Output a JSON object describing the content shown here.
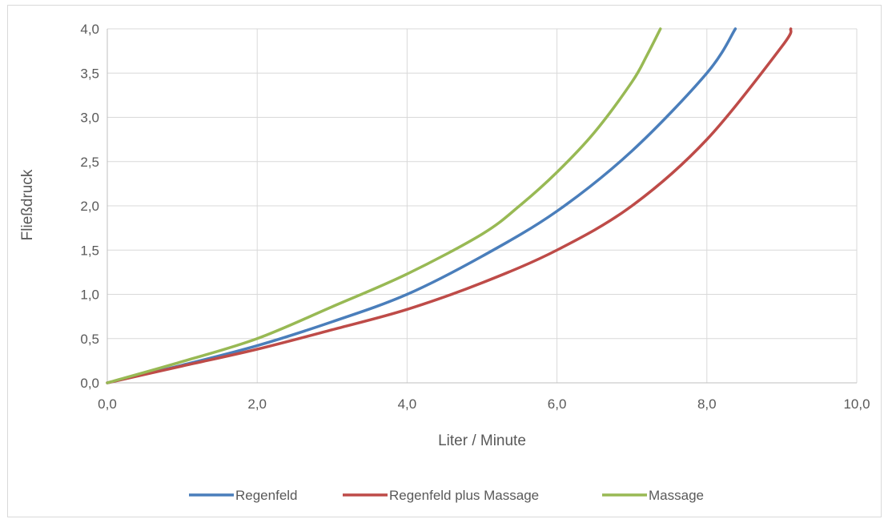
{
  "chart_data": {
    "type": "line",
    "title": "",
    "xlabel": "Liter / Minute",
    "ylabel": "Fließdruck",
    "xlim": [
      0,
      10
    ],
    "ylim": [
      0,
      4
    ],
    "x_ticks": [
      0,
      2,
      4,
      6,
      8,
      10
    ],
    "y_ticks": [
      0,
      0.5,
      1,
      1.5,
      2,
      2.5,
      3,
      3.5,
      4
    ],
    "x_tick_labels": [
      "0,0",
      "2,0",
      "4,0",
      "6,0",
      "8,0",
      "10,0"
    ],
    "y_tick_labels": [
      "0,0",
      "0,5",
      "1,0",
      "1,5",
      "2,0",
      "2,5",
      "3,0",
      "3,5",
      "4,0"
    ],
    "grid": "vertical and horizontal",
    "legend_position": "bottom",
    "series": [
      {
        "name": "Regenfeld",
        "color": "#4a7ebb",
        "points": [
          [
            0,
            0
          ],
          [
            1,
            0.2
          ],
          [
            2,
            0.42
          ],
          [
            3,
            0.69
          ],
          [
            4,
            1.0
          ],
          [
            5,
            1.43
          ],
          [
            6,
            1.94
          ],
          [
            7,
            2.62
          ],
          [
            8,
            3.5
          ],
          [
            8.38,
            4.0
          ]
        ]
      },
      {
        "name": "Regenfeld plus Massage",
        "color": "#be4b48",
        "points": [
          [
            0,
            0
          ],
          [
            1,
            0.19
          ],
          [
            2,
            0.38
          ],
          [
            3,
            0.6
          ],
          [
            4,
            0.83
          ],
          [
            5,
            1.13
          ],
          [
            6,
            1.5
          ],
          [
            7,
            2.0
          ],
          [
            8,
            2.75
          ],
          [
            9,
            3.8
          ],
          [
            9.12,
            4.0
          ]
        ]
      },
      {
        "name": "Massage",
        "color": "#98b954",
        "points": [
          [
            0,
            0
          ],
          [
            1,
            0.24
          ],
          [
            2,
            0.5
          ],
          [
            3,
            0.86
          ],
          [
            4,
            1.23
          ],
          [
            5,
            1.68
          ],
          [
            5.5,
            2.0
          ],
          [
            6,
            2.38
          ],
          [
            6.5,
            2.83
          ],
          [
            7,
            3.4
          ],
          [
            7.2,
            3.7
          ],
          [
            7.38,
            4.0
          ]
        ]
      }
    ]
  }
}
